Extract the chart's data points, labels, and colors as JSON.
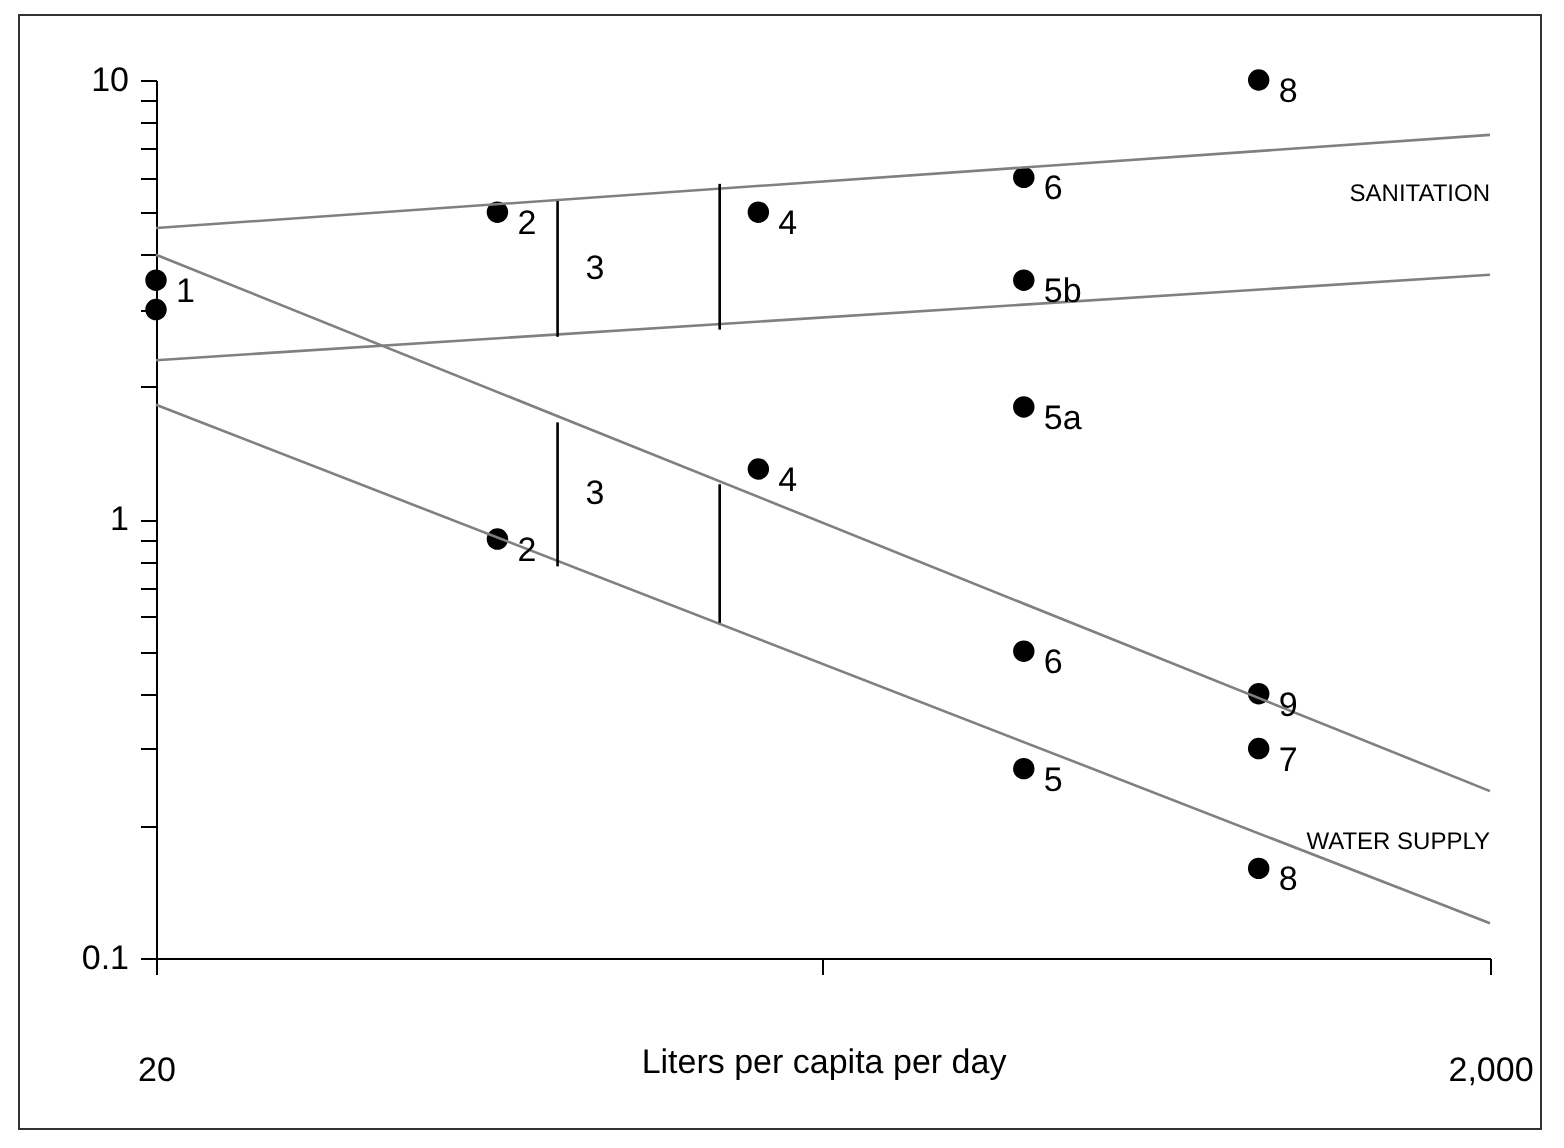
{
  "chart_data": {
    "type": "scatter",
    "xlabel": "Liters per capita per day",
    "log": "xy",
    "xlim": [
      20,
      2000
    ],
    "xticks": [
      20,
      {
        "value": 200,
        "label": null
      },
      {
        "value": 2000,
        "label": "2,000"
      }
    ],
    "ylim": [
      0.1,
      10
    ],
    "yticks": [
      0.1,
      {
        "value": 0.2,
        "label": null
      },
      {
        "value": 0.3,
        "label": null
      },
      {
        "value": 0.4,
        "label": null
      },
      {
        "value": 0.5,
        "label": null
      },
      {
        "value": 0.6,
        "label": null
      },
      {
        "value": 0.7,
        "label": null
      },
      {
        "value": 0.8,
        "label": null
      },
      {
        "value": 0.9,
        "label": null
      },
      1,
      {
        "value": 2,
        "label": null
      },
      {
        "value": 3,
        "label": null
      },
      {
        "value": 4,
        "label": null
      },
      {
        "value": 5,
        "label": null
      },
      {
        "value": 6,
        "label": null
      },
      {
        "value": 7,
        "label": null
      },
      {
        "value": 8,
        "label": null
      },
      {
        "value": 9,
        "label": null
      },
      10
    ],
    "grid": false,
    "series": [
      {
        "marker": "circle",
        "color": "#000000",
        "x": [
          20,
          20,
          65,
          160,
          400,
          400,
          400,
          900,
          65,
          160,
          400,
          400,
          900,
          900,
          900
        ],
        "values": [
          3.5,
          3.0,
          5,
          5,
          6,
          3.5,
          1.8,
          10,
          0.9,
          1.3,
          0.5,
          0.27,
          0.4,
          0.3,
          0.16
        ]
      },
      {
        "type": "line",
        "color": "#808080",
        "x": [
          20,
          2000
        ],
        "values": [
          4.6,
          7.5
        ]
      },
      {
        "type": "line",
        "name": "SANITATION",
        "color": "#808080",
        "x": [
          20,
          2000
        ],
        "values": [
          2.3,
          3.6
        ]
      },
      {
        "type": "line",
        "color": "#808080",
        "x": [
          20,
          2000
        ],
        "values": [
          4.0,
          0.24
        ]
      },
      {
        "type": "line",
        "name": "WATER SUPPLY",
        "color": "#808080",
        "x": [
          20,
          2000
        ],
        "values": [
          1.82,
          0.12
        ]
      },
      {
        "type": "line",
        "name": "3",
        "color": "#000000",
        "x": [
          80,
          80
        ],
        "values": [
          2.6,
          5.3
        ]
      },
      {
        "type": "line",
        "color": "#000000",
        "x": [
          140,
          140
        ],
        "values": [
          2.7,
          5.8
        ]
      },
      {
        "type": "line",
        "name": "3",
        "color": "#000000",
        "x": [
          80,
          80
        ],
        "values": [
          0.78,
          1.66
        ]
      },
      {
        "type": "line",
        "color": "#000000",
        "x": [
          140,
          140
        ],
        "values": [
          0.58,
          1.2
        ]
      }
    ],
    "annotations": [
      {
        "text": "1",
        "x": 20,
        "y": 3.5
      },
      {
        "text": "2",
        "x": 65,
        "y": 5
      },
      {
        "text": "4",
        "x": 160,
        "y": 5
      },
      {
        "text": "6",
        "x": 400,
        "y": 6
      },
      {
        "text": "5b",
        "x": 400,
        "y": 3.5
      },
      {
        "text": "5a",
        "x": 400,
        "y": 1.8
      },
      {
        "text": "8",
        "x": 900,
        "y": 10
      },
      {
        "text": "2",
        "x": 65,
        "y": 0.9
      },
      {
        "text": "4",
        "x": 160,
        "y": 1.3
      },
      {
        "text": "6",
        "x": 400,
        "y": 0.5
      },
      {
        "text": "5",
        "x": 400,
        "y": 0.27
      },
      {
        "text": "9",
        "x": 900,
        "y": 0.4
      },
      {
        "text": "7",
        "x": 900,
        "y": 0.3
      },
      {
        "text": "8",
        "x": 900,
        "y": 0.16
      }
    ]
  }
}
